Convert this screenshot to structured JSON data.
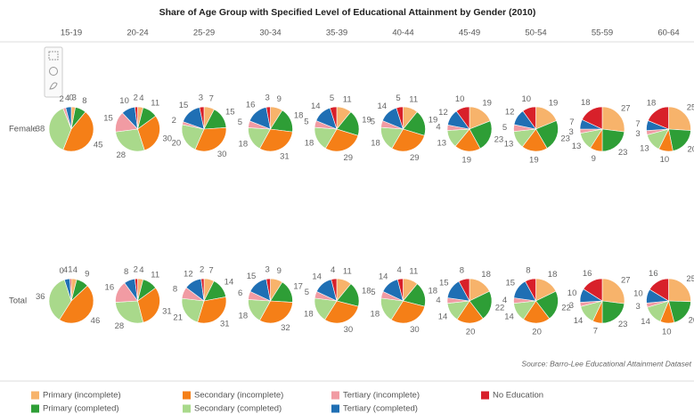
{
  "chart_data": {
    "type": "pie",
    "title": "Share of Age Group with Specified Level of Educational Attainment by Gender (2010)",
    "source": "Source: Barro-Lee Educational Attainment Dataset",
    "columns": [
      "15-19",
      "20-24",
      "25-29",
      "30-34",
      "35-39",
      "40-44",
      "45-49",
      "50-54",
      "55-59",
      "60-64"
    ],
    "rows": [
      "Female",
      "Total"
    ],
    "categories": [
      "Primary (incomplete)",
      "Primary (completed)",
      "Secondary (incomplete)",
      "Secondary (completed)",
      "Tertiary (incomplete)",
      "Tertiary (completed)",
      "No Education"
    ],
    "colors": [
      "#f7b36b",
      "#2e9e36",
      "#f57f17",
      "#a9d98b",
      "#f19ba3",
      "#1f6fb4",
      "#d8202a"
    ],
    "values": [
      [
        [
          3,
          8,
          45,
          38,
          2,
          4,
          0
        ],
        [
          4,
          11,
          30,
          28,
          15,
          10,
          2
        ],
        [
          7,
          15,
          30,
          20,
          2,
          15,
          3
        ],
        [
          9,
          18,
          31,
          18,
          5,
          16,
          3
        ],
        [
          11,
          19,
          29,
          18,
          5,
          14,
          5
        ],
        [
          11,
          19,
          29,
          18,
          5,
          14,
          5
        ],
        [
          19,
          23,
          19,
          13,
          4,
          12,
          10
        ],
        [
          19,
          23,
          19,
          13,
          5,
          12,
          10
        ],
        [
          27,
          23,
          9,
          13,
          3,
          7,
          18
        ],
        [
          25,
          20,
          10,
          13,
          3,
          7,
          18
        ]
      ],
      [
        [
          4,
          9,
          46,
          36,
          0,
          4,
          1
        ],
        [
          4,
          11,
          31,
          28,
          16,
          8,
          2
        ],
        [
          7,
          14,
          31,
          21,
          8,
          12,
          2
        ],
        [
          9,
          17,
          32,
          18,
          6,
          15,
          3
        ],
        [
          11,
          18,
          30,
          18,
          5,
          14,
          4
        ],
        [
          11,
          18,
          30,
          18,
          5,
          14,
          4
        ],
        [
          18,
          22,
          20,
          14,
          4,
          15,
          8
        ],
        [
          18,
          22,
          20,
          14,
          4,
          15,
          8
        ],
        [
          27,
          23,
          7,
          14,
          3,
          10,
          16
        ],
        [
          25,
          20,
          10,
          14,
          3,
          10,
          16
        ]
      ]
    ]
  }
}
